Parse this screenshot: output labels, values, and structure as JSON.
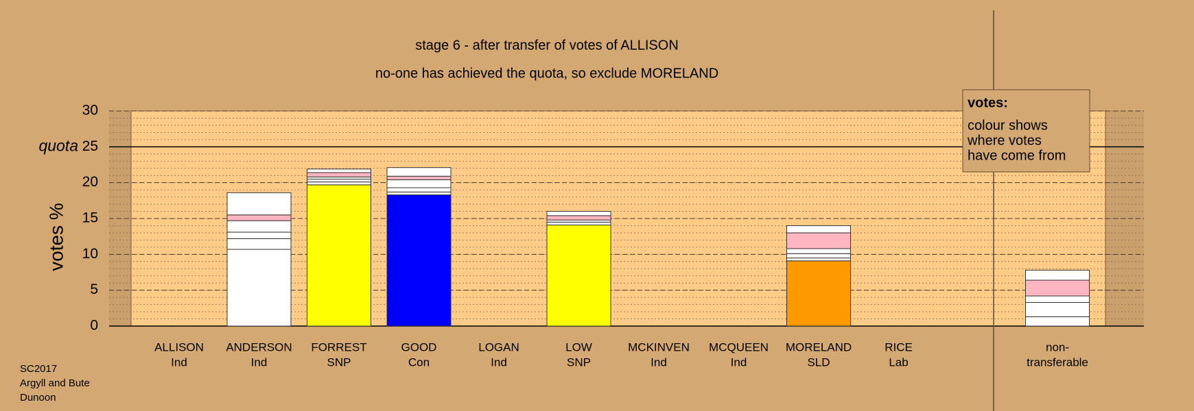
{
  "chart_data": {
    "type": "stacked-bar",
    "title": "stage 6 - after transfer of votes of ALLISON",
    "subtitle": "no-one has achieved the quota, so exclude MORELAND",
    "y_label": "votes %",
    "ylim": [
      0,
      30
    ],
    "yticks": [
      0,
      5,
      10,
      15,
      20,
      25,
      30
    ],
    "quota": 25,
    "quota_label": "quota",
    "categories": [
      [
        "ALLISON",
        "Ind"
      ],
      [
        "ANDERSON",
        "Ind"
      ],
      [
        "FORREST",
        "SNP"
      ],
      [
        "GOOD",
        "Con"
      ],
      [
        "LOGAN",
        "Ind"
      ],
      [
        "LOW",
        "SNP"
      ],
      [
        "MCKINVEN",
        "Ind"
      ],
      [
        "MCQUEEN",
        "Ind"
      ],
      [
        "MORELAND",
        "SLD"
      ],
      [
        "RICE",
        "Lab"
      ],
      [
        "non-",
        "transferable"
      ]
    ],
    "stacks": [
      [],
      [
        {
          "value": 10.7,
          "color": "#ffffff"
        },
        {
          "value": 1.5,
          "color": "#ffffff"
        },
        {
          "value": 0.9,
          "color": "#ffffff"
        },
        {
          "value": 1.6,
          "color": "#ffffff"
        },
        {
          "value": 0.8,
          "color": "#ffb6c1"
        },
        {
          "value": 3.1,
          "color": "#ffffff"
        }
      ],
      [
        {
          "value": 19.7,
          "color": "#ffff00"
        },
        {
          "value": 0.4,
          "color": "#ffffff"
        },
        {
          "value": 0.4,
          "color": "#ffffff"
        },
        {
          "value": 0.3,
          "color": "#ffffff"
        },
        {
          "value": 0.6,
          "color": "#ffb6c1"
        },
        {
          "value": 0.5,
          "color": "#ffffff"
        }
      ],
      [
        {
          "value": 18.3,
          "color": "#0000ff"
        },
        {
          "value": 0.4,
          "color": "#ffffff"
        },
        {
          "value": 0.6,
          "color": "#ffffff"
        },
        {
          "value": 1.1,
          "color": "#ffffff"
        },
        {
          "value": 0.5,
          "color": "#ffb6c1"
        },
        {
          "value": 1.2,
          "color": "#ffffff"
        }
      ],
      [],
      [
        {
          "value": 14.1,
          "color": "#ffff00"
        },
        {
          "value": 0.4,
          "color": "#ffffff"
        },
        {
          "value": 0.3,
          "color": "#ffffff"
        },
        {
          "value": 0.6,
          "color": "#ffb6c1"
        },
        {
          "value": 0.6,
          "color": "#ffffff"
        }
      ],
      [],
      [],
      [
        {
          "value": 9.1,
          "color": "#ff9900"
        },
        {
          "value": 0.4,
          "color": "#ffffff"
        },
        {
          "value": 0.6,
          "color": "#ffffff"
        },
        {
          "value": 0.7,
          "color": "#ffffff"
        },
        {
          "value": 2.2,
          "color": "#ffb6c1"
        },
        {
          "value": 1.0,
          "color": "#ffffff"
        }
      ],
      [],
      [
        {
          "value": 1.3,
          "color": "#ffffff"
        },
        {
          "value": 2.0,
          "color": "#ffffff"
        },
        {
          "value": 0.9,
          "color": "#ffffff"
        },
        {
          "value": 2.2,
          "color": "#ffb6c1"
        },
        {
          "value": 1.4,
          "color": "#ffffff"
        }
      ]
    ],
    "legend": {
      "title": "votes:",
      "lines": [
        "colour shows",
        "where votes",
        "have come from"
      ]
    }
  },
  "footer": [
    "SC2017",
    "Argyll and Bute",
    "Dunoon"
  ]
}
